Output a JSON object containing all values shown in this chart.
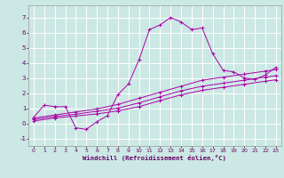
{
  "xlabel": "Windchill (Refroidissement éolien,°C)",
  "bg_color": "#cce8e4",
  "grid_color": "#ffffff",
  "line_color": "#aa00aa",
  "xlim": [
    -0.5,
    23.5
  ],
  "ylim": [
    -1.5,
    7.8
  ],
  "xticks": [
    0,
    1,
    2,
    3,
    4,
    5,
    6,
    7,
    8,
    9,
    10,
    11,
    12,
    13,
    14,
    15,
    16,
    17,
    18,
    19,
    20,
    21,
    22,
    23
  ],
  "yticks": [
    -1,
    0,
    1,
    2,
    3,
    4,
    5,
    6,
    7
  ],
  "line1_x": [
    0,
    1,
    2,
    3,
    4,
    5,
    6,
    7,
    8,
    9,
    10,
    11,
    12,
    13,
    14,
    15,
    16,
    17,
    18,
    19,
    20,
    21,
    22,
    23
  ],
  "line1_y": [
    0.4,
    1.2,
    1.1,
    1.1,
    -0.3,
    -0.4,
    0.1,
    0.5,
    1.9,
    2.6,
    4.2,
    6.2,
    6.5,
    7.0,
    6.7,
    6.2,
    6.3,
    4.6,
    3.5,
    3.4,
    3.0,
    2.9,
    3.2,
    3.7
  ],
  "line2_x": [
    0,
    2,
    4,
    6,
    8,
    10,
    12,
    14,
    16,
    18,
    20,
    22,
    23
  ],
  "line2_y": [
    0.35,
    0.55,
    0.75,
    0.95,
    1.25,
    1.65,
    2.05,
    2.45,
    2.85,
    3.05,
    3.25,
    3.45,
    3.55
  ],
  "line3_x": [
    0,
    2,
    4,
    6,
    8,
    10,
    12,
    14,
    16,
    18,
    20,
    22,
    23
  ],
  "line3_y": [
    0.25,
    0.45,
    0.6,
    0.8,
    1.0,
    1.35,
    1.75,
    2.15,
    2.45,
    2.65,
    2.85,
    3.05,
    3.15
  ],
  "line4_x": [
    0,
    2,
    4,
    6,
    8,
    10,
    12,
    14,
    16,
    18,
    20,
    22,
    23
  ],
  "line4_y": [
    0.15,
    0.35,
    0.48,
    0.62,
    0.82,
    1.1,
    1.5,
    1.88,
    2.18,
    2.38,
    2.58,
    2.78,
    2.88
  ]
}
